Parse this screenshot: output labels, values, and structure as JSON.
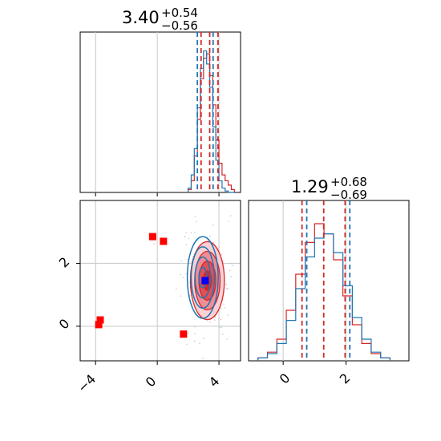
{
  "chart_data": {
    "type": "corner",
    "parameters": [
      {
        "title_value": "3.40",
        "title_plus": "+0.54",
        "title_minus": "−0.56",
        "range": [
          -5,
          5.4
        ],
        "ticks": [
          -4,
          0,
          4
        ],
        "tick_labels": [
          "−4",
          "0",
          "4"
        ],
        "quantiles_red": [
          2.84,
          3.4,
          3.94
        ],
        "quantiles_blue": [
          2.6,
          3.62
        ]
      },
      {
        "title_value": "1.29",
        "title_plus": "+0.68",
        "title_minus": "−0.69",
        "range": [
          -1.1,
          4.0
        ],
        "ticks": [
          0,
          2
        ],
        "tick_labels": [
          "0",
          "2"
        ],
        "quantiles_red": [
          0.6,
          1.29,
          1.97
        ],
        "quantiles_blue": [
          0.75,
          2.12
        ]
      }
    ],
    "joint": {
      "x_range": [
        -5,
        5.4
      ],
      "y_range": [
        -1.1,
        4.0
      ],
      "y_ticks": [
        0,
        2
      ],
      "y_tick_labels": [
        "0",
        "2"
      ],
      "grid_x": [
        -4,
        0,
        4
      ],
      "grid_y": [
        0,
        2
      ],
      "red_markers": [
        [
          -0.3,
          2.85
        ],
        [
          0.4,
          2.7
        ],
        [
          -3.7,
          0.2
        ],
        [
          -3.8,
          0.05
        ],
        [
          1.7,
          -0.25
        ]
      ],
      "blue_marker": [
        3.1,
        1.45
      ],
      "red_center": [
        3.25,
        1.45
      ],
      "red_sigma": [
        0.55,
        0.62
      ],
      "blue_center": [
        2.95,
        1.55
      ],
      "blue_sigma": [
        0.5,
        0.65
      ]
    },
    "hist_x": {
      "bins": [
        2.0,
        2.2,
        2.4,
        2.6,
        2.8,
        3.0,
        3.2,
        3.4,
        3.6,
        3.8,
        4.0,
        4.2,
        4.4,
        4.6,
        4.8,
        5.0
      ],
      "red": [
        0.02,
        0.08,
        0.25,
        0.5,
        0.78,
        0.92,
        0.95,
        0.8,
        0.6,
        0.36,
        0.2,
        0.12,
        0.08,
        0.05,
        0.02
      ],
      "blue": [
        0.03,
        0.12,
        0.3,
        0.58,
        0.85,
        0.97,
        0.88,
        0.72,
        0.45,
        0.22,
        0.08,
        0.03,
        0.01,
        0.0,
        0.0
      ]
    },
    "hist_y": {
      "bins": [
        -0.8,
        -0.5,
        -0.2,
        0.1,
        0.4,
        0.7,
        1.0,
        1.3,
        1.6,
        1.9,
        2.2,
        2.5,
        2.8,
        3.1,
        3.4
      ],
      "red": [
        0.02,
        0.06,
        0.15,
        0.35,
        0.6,
        0.82,
        0.95,
        0.88,
        0.7,
        0.45,
        0.25,
        0.12,
        0.05,
        0.02
      ],
      "blue": [
        0.02,
        0.05,
        0.12,
        0.28,
        0.5,
        0.72,
        0.85,
        0.88,
        0.75,
        0.52,
        0.3,
        0.15,
        0.06,
        0.02
      ]
    },
    "colors": {
      "red": "#d62728",
      "blue": "#1f77b4",
      "marker_red": "#ff0000",
      "marker_blue": "#0000ff",
      "grid": "#c8c8c8"
    }
  }
}
